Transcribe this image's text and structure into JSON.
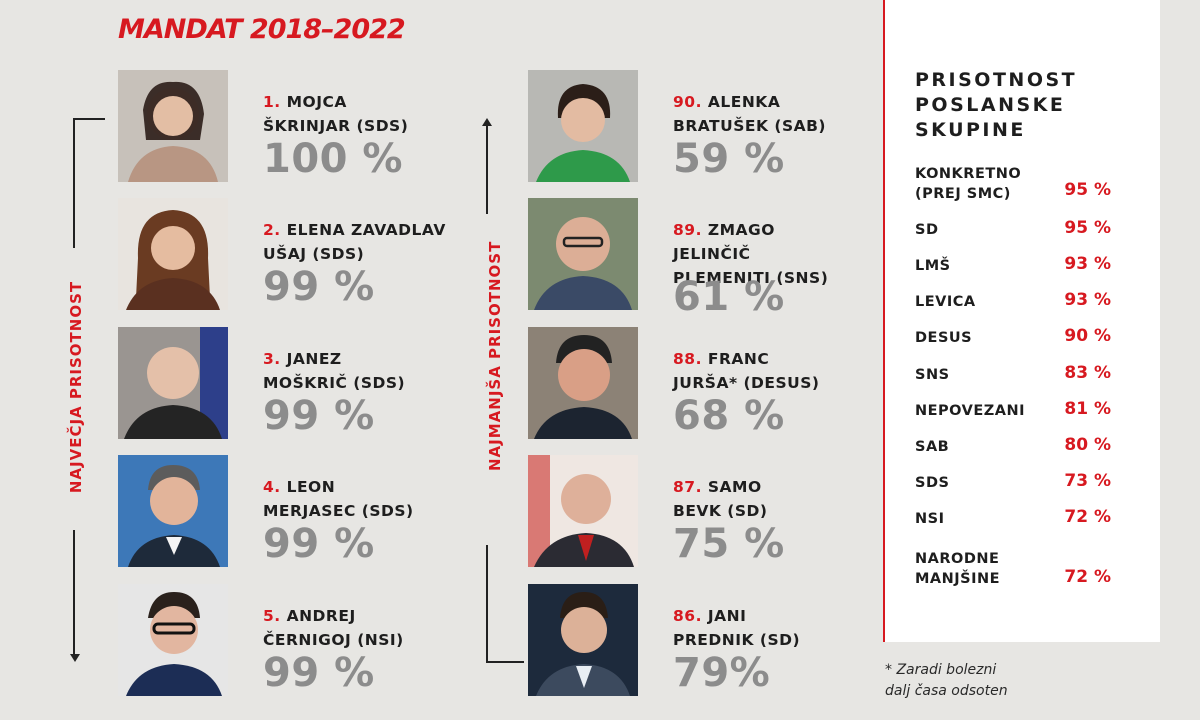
{
  "title": "MANDAT 2018–2022",
  "left_label": "NAJVEČJA PRISOTNOST",
  "right_label": "NAJMANJŠA PRISOTNOST",
  "top": [
    {
      "num": "1.",
      "line1": "MOJCA",
      "line2": "ŠKRINJAR (SDS)",
      "pct": "100 %"
    },
    {
      "num": "2.",
      "line1": "ELENA ZAVADLAV",
      "line2": "UŠAJ (SDS)",
      "pct": "99 %"
    },
    {
      "num": "3.",
      "line1": "JANEZ",
      "line2": "MOŠKRIČ (SDS)",
      "pct": "99 %"
    },
    {
      "num": "4.",
      "line1": "LEON",
      "line2": "MERJASEC (SDS)",
      "pct": "99 %"
    },
    {
      "num": "5.",
      "line1": "ANDREJ",
      "line2": "ČERNIGOJ (NSI)",
      "pct": "99 %"
    }
  ],
  "bottom": [
    {
      "num": "90.",
      "line1": "ALENKA",
      "line2": "BRATUŠEK (SAB)",
      "line3": "",
      "pct": "59 %"
    },
    {
      "num": "89.",
      "line1": "ZMAGO",
      "line2": "JELINČIČ",
      "line3": " PLEMENITI (SNS)",
      "pct": "61 %"
    },
    {
      "num": "88.",
      "line1": "FRANC",
      "line2": "JURŠA* (DESUS)",
      "line3": "",
      "pct": "68 %"
    },
    {
      "num": "87.",
      "line1": "SAMO",
      "line2": "BEVK (SD)",
      "line3": "",
      "pct": "75 %"
    },
    {
      "num": "86.",
      "line1": "JANI",
      "line2": "PREDNIK (SD)",
      "line3": "",
      "pct": "79%"
    }
  ],
  "panel": {
    "title": "PRISOTNOST POSLANSKE SKUPINE",
    "groups": [
      {
        "name": "KONKRETNO (PREJ SMC)",
        "value": "95 %"
      },
      {
        "name": "SD",
        "value": "95 %"
      },
      {
        "name": "LMŠ",
        "value": "93 %"
      },
      {
        "name": "LEVICA",
        "value": "93 %"
      },
      {
        "name": "DESUS",
        "value": "90 %"
      },
      {
        "name": "SNS",
        "value": "83 %"
      },
      {
        "name": "NEPOVEZANI",
        "value": "81 %"
      },
      {
        "name": "SAB",
        "value": "80 %"
      },
      {
        "name": "SDS",
        "value": "73 %"
      },
      {
        "name": "NSI",
        "value": "72 %"
      },
      {
        "name": "NARODNE MANJŠINE",
        "value": "72 %"
      }
    ]
  },
  "footnote_line1": "* Zaradi bolezni",
  "footnote_line2": "dalj časa odsoten",
  "colors": {
    "accent": "#d71920",
    "pct_grey": "#8c8c8c"
  }
}
